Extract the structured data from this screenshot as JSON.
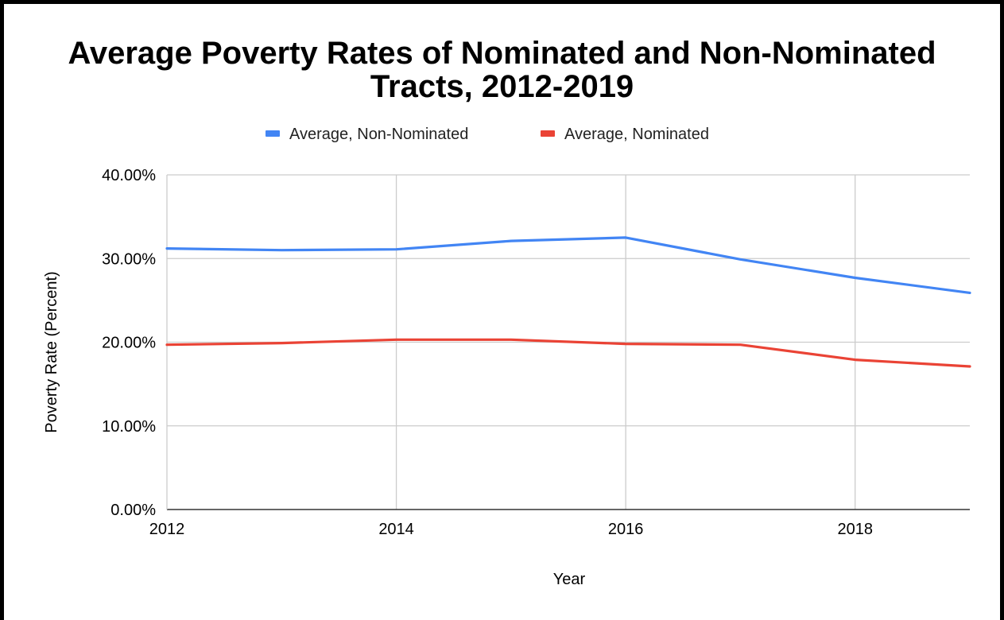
{
  "chart_data": {
    "type": "line",
    "title_line1": "Average Poverty Rates of Nominated and Non-Nominated",
    "title_line2": "Tracts, 2012-2019",
    "xlabel": "Year",
    "ylabel": "Poverty Rate (Percent)",
    "x": [
      2012,
      2013,
      2014,
      2015,
      2016,
      2017,
      2018,
      2019
    ],
    "xlim": [
      2012,
      2019
    ],
    "ylim": [
      0,
      40
    ],
    "x_ticks": [
      "2012",
      "2014",
      "2016",
      "2018"
    ],
    "y_ticks": [
      "0.00%",
      "10.00%",
      "20.00%",
      "30.00%",
      "40.00%"
    ],
    "grid": true,
    "legend_position": "top",
    "series": [
      {
        "name": "Average, Non-Nominated",
        "color": "#4285f4",
        "values": [
          31.2,
          31.0,
          31.1,
          32.1,
          32.5,
          29.9,
          27.7,
          25.9
        ]
      },
      {
        "name": "Average, Nominated",
        "color": "#ea4335",
        "values": [
          19.7,
          19.9,
          20.3,
          20.3,
          19.8,
          19.7,
          17.9,
          17.1
        ]
      }
    ]
  }
}
